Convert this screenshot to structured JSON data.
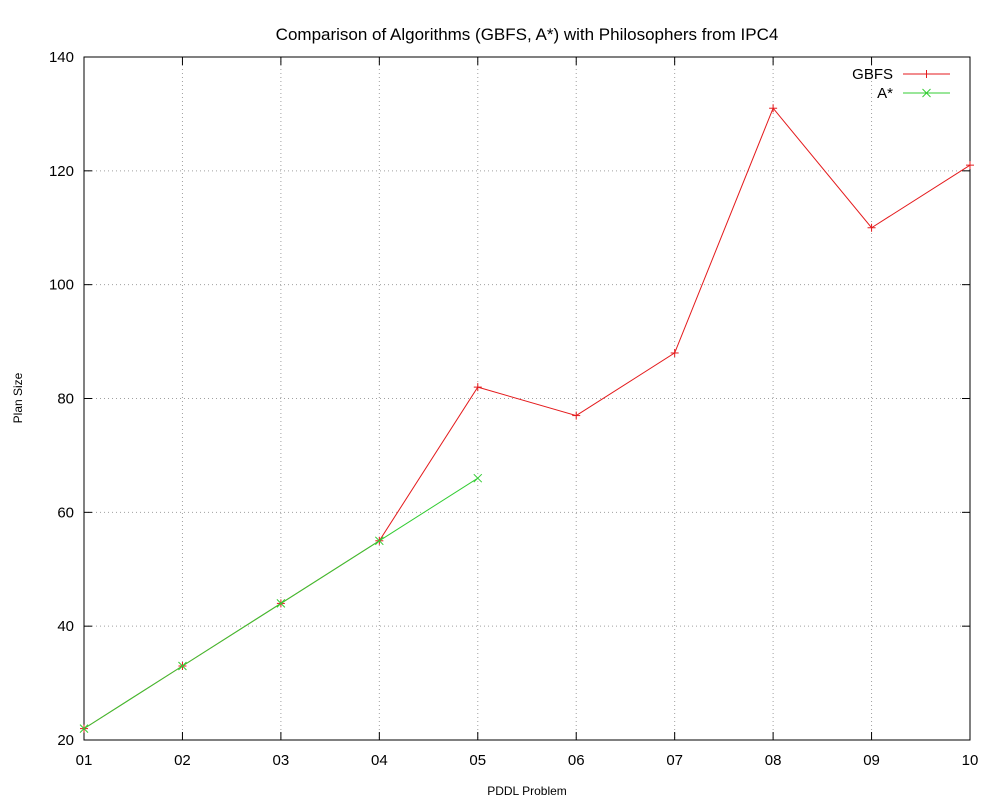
{
  "chart_data": {
    "type": "line",
    "title": "Comparison of Algorithms (GBFS, A*) with Philosophers from IPC4",
    "xlabel": "PDDL Problem",
    "ylabel": "Plan Size",
    "categories": [
      "01",
      "02",
      "03",
      "04",
      "05",
      "06",
      "07",
      "08",
      "09",
      "10"
    ],
    "ylim": [
      20,
      140
    ],
    "yticks": [
      20,
      40,
      60,
      80,
      100,
      120,
      140
    ],
    "grid": true,
    "legend_position": "top-right",
    "series": [
      {
        "name": "GBFS",
        "color": "#e41a1c",
        "marker": "plus",
        "values": [
          22,
          33,
          44,
          55,
          82,
          77,
          88,
          131,
          110,
          121
        ]
      },
      {
        "name": "A*",
        "color": "#33cc33",
        "marker": "cross",
        "values": [
          22,
          33,
          44,
          55,
          66,
          null,
          null,
          null,
          null,
          null
        ]
      }
    ]
  }
}
